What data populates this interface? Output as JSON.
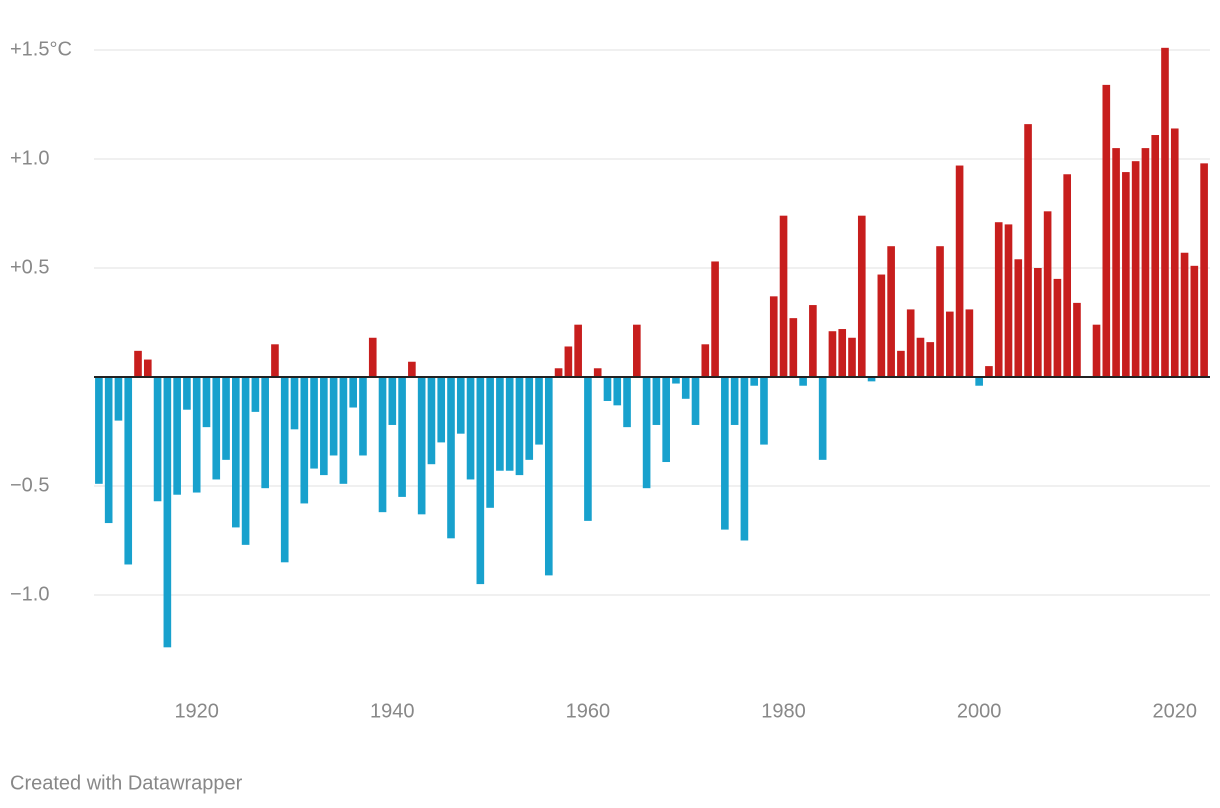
{
  "chart_data": {
    "type": "bar",
    "x": [
      1910,
      1911,
      1912,
      1913,
      1914,
      1915,
      1916,
      1917,
      1918,
      1919,
      1920,
      1921,
      1922,
      1923,
      1924,
      1925,
      1926,
      1927,
      1928,
      1929,
      1930,
      1931,
      1932,
      1933,
      1934,
      1935,
      1936,
      1937,
      1938,
      1939,
      1940,
      1941,
      1942,
      1943,
      1944,
      1945,
      1946,
      1947,
      1948,
      1949,
      1950,
      1951,
      1952,
      1953,
      1954,
      1955,
      1956,
      1957,
      1958,
      1959,
      1960,
      1961,
      1962,
      1963,
      1964,
      1965,
      1966,
      1967,
      1968,
      1969,
      1970,
      1971,
      1972,
      1973,
      1974,
      1975,
      1976,
      1977,
      1978,
      1979,
      1980,
      1981,
      1982,
      1983,
      1984,
      1985,
      1986,
      1987,
      1988,
      1989,
      1990,
      1991,
      1992,
      1993,
      1994,
      1995,
      1996,
      1997,
      1998,
      1999,
      2000,
      2001,
      2002,
      2003,
      2004,
      2005,
      2006,
      2007,
      2008,
      2009,
      2010,
      2011,
      2012,
      2013,
      2014,
      2015,
      2016,
      2017,
      2018,
      2019,
      2020,
      2021,
      2022,
      2023
    ],
    "values": [
      -0.49,
      -0.67,
      -0.2,
      -0.86,
      0.12,
      0.08,
      -0.57,
      -1.24,
      -0.54,
      -0.15,
      -0.53,
      -0.23,
      -0.47,
      -0.38,
      -0.69,
      -0.77,
      -0.16,
      -0.51,
      0.15,
      -0.85,
      -0.24,
      -0.58,
      -0.42,
      -0.45,
      -0.36,
      -0.49,
      -0.14,
      -0.36,
      0.18,
      -0.62,
      -0.22,
      -0.55,
      0.07,
      -0.63,
      -0.4,
      -0.3,
      -0.74,
      -0.26,
      -0.47,
      -0.95,
      -0.6,
      -0.43,
      -0.43,
      -0.45,
      -0.38,
      -0.31,
      -0.91,
      0.04,
      0.14,
      0.24,
      -0.66,
      0.04,
      -0.11,
      -0.13,
      -0.23,
      0.24,
      -0.51,
      -0.22,
      -0.39,
      -0.03,
      -0.1,
      -0.22,
      0.15,
      0.53,
      -0.7,
      -0.22,
      -0.75,
      -0.04,
      -0.31,
      0.37,
      0.74,
      0.27,
      -0.04,
      0.33,
      -0.38,
      0.21,
      0.22,
      0.18,
      0.74,
      -0.02,
      0.47,
      0.6,
      0.12,
      0.31,
      0.18,
      0.16,
      0.6,
      0.3,
      0.97,
      0.31,
      -0.04,
      0.05,
      0.71,
      0.7,
      0.54,
      1.16,
      0.5,
      0.76,
      0.45,
      0.93,
      0.34,
      0,
      0.24,
      1.34,
      1.05,
      0.94,
      0.99,
      1.05,
      1.11,
      1.51,
      1.14,
      0.57,
      0.51,
      0.98
    ],
    "positive_color": "#c71e1d",
    "negative_color": "#18a1cd",
    "xlim": [
      1909.5,
      2023.5
    ],
    "xticks": [
      1920,
      1940,
      1960,
      1980,
      2000,
      2020
    ],
    "ylim": [
      -1.5,
      1.5
    ],
    "yticks": [
      {
        "value": -1,
        "label": "−1.0"
      },
      {
        "value": -0.5,
        "label": "−0.5"
      },
      {
        "value": 0.5,
        "label": "+0.5"
      },
      {
        "value": 1,
        "label": "+1.0"
      },
      {
        "value": 1.5,
        "label": "+1.5°C"
      }
    ],
    "grid": true,
    "footer": "Created with Datawrapper"
  }
}
